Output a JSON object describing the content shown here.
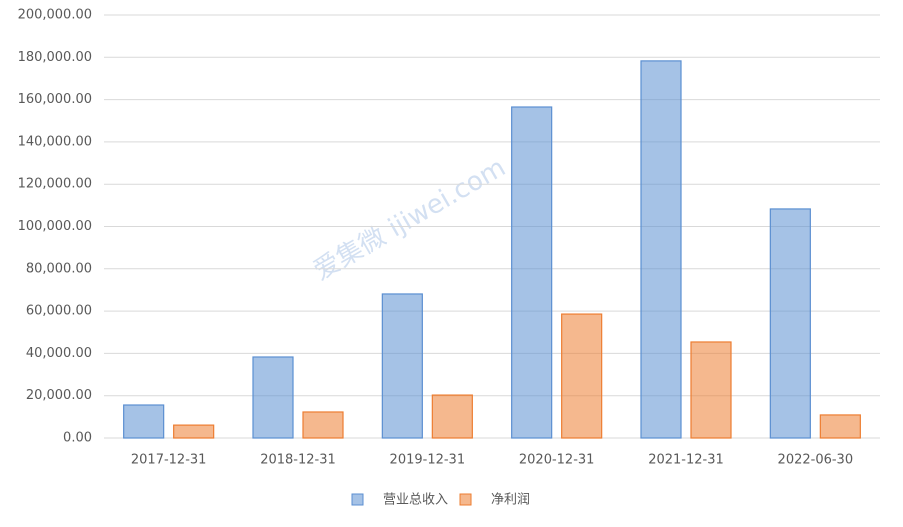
{
  "chart_data": {
    "type": "bar",
    "categories": [
      "2017-12-31",
      "2018-12-31",
      "2019-12-31",
      "2020-12-31",
      "2021-12-31",
      "2022-06-30"
    ],
    "series": [
      {
        "name": "营业总收入",
        "color": "#5b8fd1",
        "values": [
          15600,
          38300,
          68100,
          156500,
          178300,
          108300
        ]
      },
      {
        "name": "净利润",
        "color": "#ed7d31",
        "values": [
          6100,
          12300,
          20300,
          58600,
          45400,
          10900
        ]
      }
    ],
    "ylim": [
      0,
      200000
    ],
    "yticks": [
      {
        "value": 0,
        "label": "0.00"
      },
      {
        "value": 20000,
        "label": "20,000.00"
      },
      {
        "value": 40000,
        "label": "40,000.00"
      },
      {
        "value": 60000,
        "label": "60,000.00"
      },
      {
        "value": 80000,
        "label": "80,000.00"
      },
      {
        "value": 100000,
        "label": "100,000.00"
      },
      {
        "value": 120000,
        "label": "120,000.00"
      },
      {
        "value": 140000,
        "label": "140,000.00"
      },
      {
        "value": 160000,
        "label": "160,000.00"
      },
      {
        "value": 180000,
        "label": "180,000.00"
      },
      {
        "value": 200000,
        "label": "200,000.00"
      }
    ],
    "grid": true,
    "legend": "bottom",
    "watermark": "爱集微 ijiwei.com"
  }
}
